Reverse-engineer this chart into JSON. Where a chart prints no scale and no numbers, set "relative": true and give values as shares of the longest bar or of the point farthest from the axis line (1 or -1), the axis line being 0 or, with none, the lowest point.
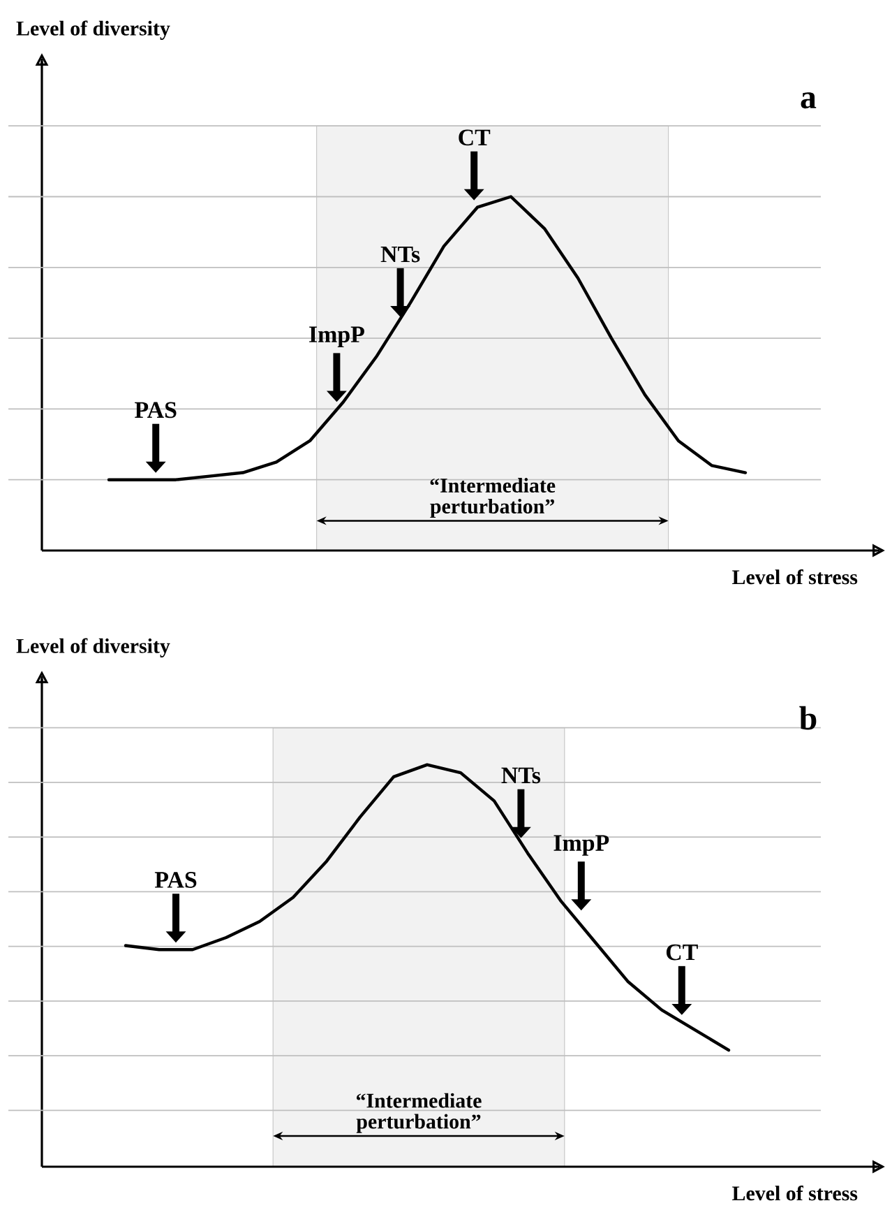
{
  "chart_data": [
    {
      "type": "line",
      "xlabel": "Level of stress",
      "ylabel": "Level of diversity",
      "relative": true,
      "tick_labels": false,
      "grid": "y",
      "marker": "none",
      "line_style": "solid",
      "categories": [
        null,
        null,
        null,
        null,
        null,
        null,
        null,
        null,
        null,
        null,
        null,
        null,
        null,
        null,
        null,
        null,
        null,
        null,
        null,
        null
      ],
      "series": [
        {
          "color": "#000000",
          "values": [
            0.2,
            0.2,
            0.2,
            0.21,
            0.22,
            0.25,
            0.31,
            0.42,
            0.55,
            0.7,
            0.86,
            0.97,
            1.0,
            0.91,
            0.77,
            0.6,
            0.44,
            0.31,
            0.24,
            0.22
          ]
        }
      ],
      "annotations": [
        "a",
        "PAS",
        "ImpP",
        "NTs",
        "CT",
        "“Intermediate perturbation”"
      ]
    },
    {
      "type": "line",
      "xlabel": "Level of stress",
      "ylabel": "Level of diversity",
      "relative": true,
      "tick_labels": false,
      "grid": "y",
      "marker": "none",
      "line_style": "solid",
      "categories": [
        null,
        null,
        null,
        null,
        null,
        null,
        null,
        null,
        null,
        null,
        null,
        null,
        null,
        null,
        null,
        null,
        null,
        null,
        null
      ],
      "series": [
        {
          "color": "#000000",
          "values": [
            0.55,
            0.54,
            0.54,
            0.57,
            0.61,
            0.67,
            0.76,
            0.87,
            0.97,
            1.0,
            0.98,
            0.91,
            0.78,
            0.66,
            0.56,
            0.46,
            0.39,
            0.34,
            0.29
          ]
        }
      ],
      "annotations": [
        "b",
        "PAS",
        "NTs",
        "ImpP",
        "CT",
        "“Intermediate perturbation”"
      ]
    }
  ]
}
